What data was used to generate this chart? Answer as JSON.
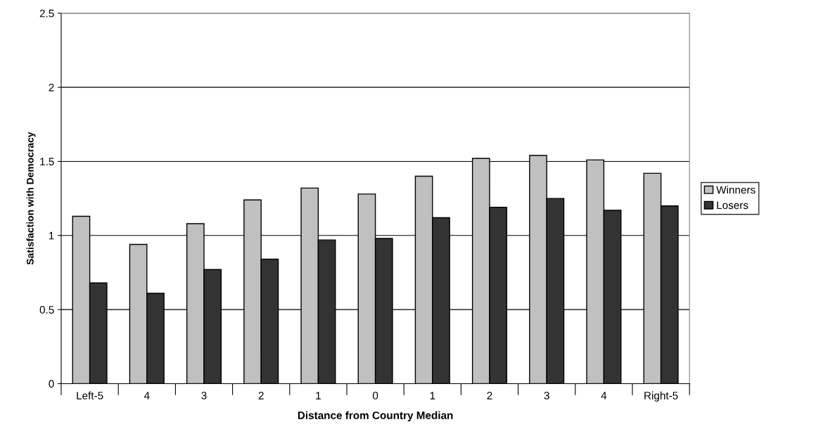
{
  "chart_data": {
    "type": "bar",
    "xlabel": "Distance from Country Median",
    "ylabel": "Satisfaction with Democracy",
    "categories": [
      "Left-5",
      "4",
      "3",
      "2",
      "1",
      "0",
      "1",
      "2",
      "3",
      "4",
      "Right-5"
    ],
    "series": [
      {
        "name": "Winners",
        "color": "#c0c0c0",
        "values": [
          1.13,
          0.94,
          1.08,
          1.24,
          1.32,
          1.28,
          1.4,
          1.52,
          1.54,
          1.51,
          1.42
        ]
      },
      {
        "name": "Losers",
        "color": "#333333",
        "values": [
          0.68,
          0.61,
          0.77,
          0.84,
          0.97,
          0.98,
          1.12,
          1.19,
          1.25,
          1.17,
          1.2
        ]
      }
    ],
    "ylim": [
      0,
      2.5
    ],
    "yticks": [
      0,
      0.5,
      1,
      1.5,
      2,
      2.5
    ],
    "grid": "y",
    "legend": "right"
  }
}
